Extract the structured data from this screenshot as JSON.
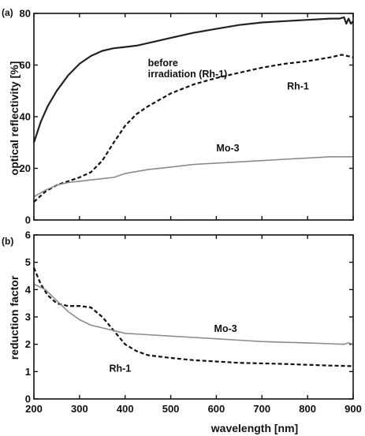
{
  "chart_data": [
    {
      "panel_label": "(a)",
      "type": "line",
      "xlabel": "",
      "ylabel": "optical reflectivity [%]",
      "xlim": [
        200,
        900
      ],
      "ylim": [
        0,
        80
      ],
      "x_ticks": [
        200,
        300,
        400,
        500,
        600,
        700,
        800,
        900
      ],
      "y_ticks": [
        0,
        20,
        40,
        60,
        80
      ],
      "grid": false,
      "series": [
        {
          "name": "before irradiation (Rh-1)",
          "style": "solid",
          "color": "#222222",
          "x": [
            200,
            215,
            230,
            250,
            275,
            300,
            325,
            350,
            375,
            400,
            425,
            450,
            500,
            550,
            600,
            650,
            700,
            750,
            800,
            850,
            870,
            880,
            885,
            890,
            895,
            900
          ],
          "y": [
            30,
            38,
            44,
            50,
            56,
            60.5,
            63.5,
            65.5,
            66.5,
            67,
            67.5,
            68.5,
            70.5,
            72.5,
            74,
            75.5,
            76.5,
            77,
            77.5,
            78,
            78,
            78.5,
            76,
            78,
            76,
            77
          ]
        },
        {
          "name": "Rh-1",
          "style": "dashed",
          "color": "#111111",
          "x": [
            200,
            225,
            250,
            275,
            300,
            325,
            350,
            375,
            400,
            425,
            450,
            475,
            500,
            550,
            600,
            650,
            700,
            750,
            800,
            850,
            875,
            900
          ],
          "y": [
            7,
            11,
            13.5,
            15,
            16.5,
            18.5,
            23,
            30,
            36.5,
            41,
            44,
            46.5,
            49,
            52.5,
            55,
            57,
            59,
            60.5,
            61.5,
            63,
            64,
            63
          ]
        },
        {
          "name": "Mo-3",
          "style": "solid",
          "color": "#8c8c8c",
          "x": [
            200,
            225,
            250,
            275,
            300,
            325,
            350,
            375,
            400,
            450,
            500,
            550,
            600,
            650,
            700,
            750,
            800,
            850,
            900
          ],
          "y": [
            9,
            11.5,
            13.5,
            14.5,
            15,
            15.5,
            16,
            16.5,
            18,
            19.5,
            20.5,
            21.5,
            22,
            22.5,
            23,
            23.5,
            24,
            24.5,
            24.5
          ]
        }
      ],
      "annotations": [
        {
          "lines": [
            "before",
            "irradiation (Rh-1)"
          ],
          "x": 450,
          "y": 59.5
        },
        {
          "lines": [
            "Rh-1"
          ],
          "x": 755,
          "y": 50.5
        },
        {
          "lines": [
            "Mo-3"
          ],
          "x": 600,
          "y": 26.5
        }
      ]
    },
    {
      "panel_label": "(b)",
      "type": "line",
      "xlabel": "wavelength [nm]",
      "ylabel": "reduction factor",
      "xlim": [
        200,
        900
      ],
      "ylim": [
        0,
        6
      ],
      "x_ticks": [
        200,
        300,
        400,
        500,
        600,
        700,
        800,
        900
      ],
      "y_ticks": [
        0,
        1,
        2,
        3,
        4,
        5,
        6
      ],
      "grid": false,
      "series": [
        {
          "name": "Rh-1",
          "style": "dashed",
          "color": "#111111",
          "x": [
            200,
            215,
            230,
            250,
            275,
            300,
            325,
            350,
            375,
            400,
            425,
            450,
            500,
            550,
            600,
            650,
            700,
            750,
            800,
            850,
            900
          ],
          "y": [
            4.8,
            4.2,
            3.8,
            3.5,
            3.4,
            3.4,
            3.35,
            3.0,
            2.5,
            2.0,
            1.75,
            1.6,
            1.5,
            1.42,
            1.37,
            1.32,
            1.3,
            1.28,
            1.25,
            1.22,
            1.2
          ]
        },
        {
          "name": "Mo-3",
          "style": "solid",
          "color": "#8c8c8c",
          "x": [
            200,
            225,
            250,
            275,
            300,
            325,
            350,
            375,
            400,
            450,
            500,
            550,
            600,
            650,
            700,
            750,
            800,
            850,
            880,
            890,
            900
          ],
          "y": [
            4.2,
            4.0,
            3.6,
            3.2,
            2.9,
            2.7,
            2.6,
            2.5,
            2.4,
            2.35,
            2.3,
            2.25,
            2.2,
            2.15,
            2.1,
            2.07,
            2.05,
            2.02,
            2.0,
            2.05,
            2.0
          ]
        }
      ],
      "annotations": [
        {
          "lines": [
            "Mo-3"
          ],
          "x": 595,
          "y": 2.45
        },
        {
          "lines": [
            "Rh-1"
          ],
          "x": 365,
          "y": 1.0
        }
      ]
    }
  ]
}
